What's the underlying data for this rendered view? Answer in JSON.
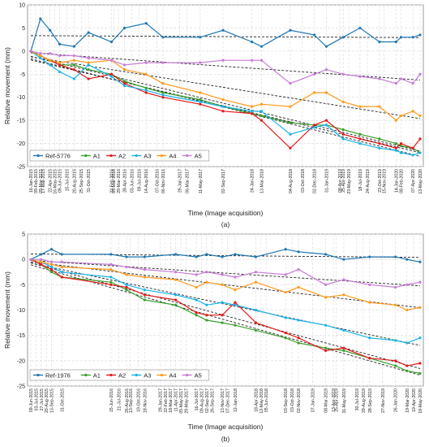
{
  "chart_data": [
    {
      "type": "line",
      "caption": "(a)",
      "xlabel": "Time (Image acquisition)",
      "ylabel": "Relative movement (mm)",
      "ylim": [
        -25,
        10
      ],
      "yticks": [
        10,
        5,
        0,
        -5,
        -10,
        -15,
        -20,
        -25
      ],
      "grid": true,
      "legend_position": "bottom-left",
      "x_tick_labels": [
        "16-Jan-2015",
        "09-Feb-2015",
        "05-Mar-2015",
        "17-Mar-2015",
        "22-Apr-2015",
        "16-May-2015",
        "09-Jun-2015",
        "15-Jul-2015",
        "20-Aug-2015",
        "25-Sep-2015",
        "31-Oct-2015",
        "23-Feb-2016",
        "05-Mar-2016",
        "29-Mar-2016",
        "28-Apr-2016",
        "03-Jun-2016",
        "09-Jul-2016",
        "14-Aug-2016",
        "07-Oct-2016",
        "06-Nov-2016",
        "29-Jan-2017",
        "06-Mar-2017",
        "11-May-2017",
        "02-Sep-2017",
        "24-Jan-2018",
        "13-Mar-2018",
        "04-Aug-2018",
        "03-Oct-2018",
        "02-Dec-2018",
        "31-Jan-2019",
        "08-Apr-2019",
        "25-Apr-2019",
        "23-May-2019",
        "18-Jul-2019",
        "24-Aug-2019",
        "23-Oct-2019",
        "15-Nov-2019",
        "14-Jan-2020",
        "08-Feb-2020",
        "07-Apr-2020",
        "13-May-2020"
      ],
      "x": [
        "16-Jan-2015",
        "05-Mar-2015",
        "22-Apr-2015",
        "09-Jun-2015",
        "20-Aug-2015",
        "31-Oct-2015",
        "23-Feb-2016",
        "28-Apr-2016",
        "14-Aug-2016",
        "06-Nov-2016",
        "11-May-2017",
        "02-Sep-2017",
        "24-Jan-2018",
        "13-Mar-2018",
        "04-Aug-2018",
        "02-Dec-2018",
        "31-Jan-2019",
        "25-Apr-2019",
        "18-Jul-2019",
        "23-Oct-2019",
        "14-Jan-2020",
        "08-Feb-2020",
        "07-Apr-2020",
        "13-May-2020"
      ],
      "series": [
        {
          "name": "Ref-5776",
          "color": "#1f77b4",
          "values": [
            0,
            7,
            4.5,
            1.5,
            1,
            4,
            2,
            5,
            6,
            3,
            3,
            4.5,
            2,
            1,
            4.5,
            3.5,
            1,
            3,
            5,
            2,
            2,
            3,
            3,
            3.5
          ]
        },
        {
          "name": "A1",
          "color": "#3aa02d",
          "values": [
            0,
            -1,
            -2,
            -3,
            -3,
            -4,
            -5,
            -6.5,
            -8,
            -9,
            -10.5,
            -12,
            -13.5,
            -14,
            -15.5,
            -16,
            -16,
            -17,
            -18,
            -19,
            -20,
            -20.5,
            -21,
            -22
          ]
        },
        {
          "name": "A2",
          "color": "#e41a1c",
          "values": [
            0,
            -1,
            -2,
            -3,
            -4,
            -6,
            -5,
            -7,
            -9,
            -10,
            -11.5,
            -13,
            -13.5,
            -15,
            -21,
            -16,
            -15,
            -18,
            -19,
            -20,
            -21,
            -20,
            -21,
            -19
          ]
        },
        {
          "name": "A3",
          "color": "#17b4e8",
          "values": [
            0,
            -1.5,
            -3,
            -4.5,
            -6,
            -3,
            -5.5,
            -7.5,
            -8.5,
            -9.5,
            -11,
            -12,
            -13,
            -13,
            -18,
            -16.5,
            -16,
            -19,
            -20,
            -21,
            -21.5,
            -22,
            -22.5,
            -22
          ]
        },
        {
          "name": "A4",
          "color": "#ff9a1a",
          "values": [
            0,
            -1,
            -2,
            -2.5,
            -2,
            -2.5,
            -2,
            -4,
            -5,
            -7,
            -9,
            -10.5,
            -12,
            -11.5,
            -12,
            -9,
            -9,
            -11,
            -12,
            -12,
            -15,
            -14,
            -13,
            -14
          ]
        },
        {
          "name": "A5",
          "color": "#c77cd6",
          "values": [
            0,
            -0.5,
            -0.5,
            -1,
            -1,
            -1.5,
            -2,
            -3,
            -2.5,
            -2.5,
            -2.5,
            -2,
            -2,
            -2,
            -7,
            -5,
            -4,
            -5,
            -5.5,
            -6,
            -7,
            -6,
            -7,
            -5
          ]
        }
      ]
    },
    {
      "type": "line",
      "caption": "(b)",
      "xlabel": "Time (Image acquisition)",
      "ylabel": "Relative movement (mm)",
      "ylim": [
        -25,
        5
      ],
      "yticks": [
        5,
        0,
        -5,
        -10,
        -15,
        -20,
        -25
      ],
      "grid": true,
      "legend_position": "bottom-left",
      "x_tick_labels": [
        "09-Jun-2015",
        "03-Jul-2015",
        "27-Jul-2015",
        "20-Aug-2015",
        "13-Sep-2015",
        "31-Oct-2015",
        "15-Jun-2016",
        "21-Jul-2016",
        "26-Aug-2016",
        "13-Sep-2016",
        "19-Oct-2016",
        "18-Nov-2016",
        "29-Jan-2017",
        "22-Feb-2017",
        "18-Mar-2017",
        "11-Apr-2017",
        "05-May-2017",
        "29-May-2017",
        "16-Jul-2017",
        "09-Aug-2017",
        "02-Sep-2017",
        "26-Sep-2017",
        "13-Nov-2017",
        "07-Dec-2017",
        "12-Jan-2018",
        "18-Apr-2018",
        "12-May-2018",
        "05-Jun-2018",
        "03-Sep-2018",
        "03-Oct-2018",
        "02-Nov-2018",
        "07-Jan-2019",
        "08-Mar-2019",
        "13-Apr-2019",
        "25-Apr-2019",
        "31-May-2019",
        "30-Jul-2019",
        "29-Aug-2019",
        "28-Sep-2019",
        "27-Nov-2019",
        "26-Jan-2020",
        "19-Mar-2020",
        "19-Apr-2020",
        "19-May-2020"
      ],
      "x": [
        "09-Jun-2015",
        "27-Jul-2015",
        "13-Sep-2015",
        "31-Oct-2015",
        "15-Jun-2016",
        "26-Aug-2016",
        "18-Nov-2016",
        "11-Apr-2017",
        "16-Jul-2017",
        "02-Sep-2017",
        "13-Nov-2017",
        "12-Jan-2018",
        "18-Apr-2018",
        "03-Sep-2018",
        "02-Nov-2018",
        "08-Mar-2019",
        "31-May-2019",
        "28-Sep-2019",
        "26-Jan-2020",
        "19-Mar-2020",
        "19-May-2020"
      ],
      "series": [
        {
          "name": "Ref-1976",
          "color": "#1f77b4",
          "values": [
            0,
            1,
            2,
            1,
            1,
            0.5,
            0.5,
            1,
            0.5,
            1,
            0.5,
            1,
            0.5,
            2,
            1.5,
            1,
            0,
            0.5,
            0.5,
            0,
            -0.5
          ]
        },
        {
          "name": "A1",
          "color": "#3aa02d",
          "values": [
            0,
            -1,
            -2.5,
            -3.5,
            -4.5,
            -6,
            -8,
            -9,
            -11,
            -12,
            -12.5,
            -13,
            -14,
            -15.5,
            -16.5,
            -17.5,
            -18,
            -19.5,
            -21,
            -22,
            -22.5
          ]
        },
        {
          "name": "A2",
          "color": "#e41a1c",
          "values": [
            0,
            -1,
            -2,
            -3.5,
            -5,
            -5.5,
            -7,
            -8,
            -10.5,
            -11,
            -11,
            -8.5,
            -12.5,
            -14.5,
            -15.5,
            -18,
            -17.5,
            -19.5,
            -20,
            -21,
            -20.5
          ]
        },
        {
          "name": "A3",
          "color": "#17b4e8",
          "values": [
            0,
            -0.5,
            -1.5,
            -2.5,
            -3.5,
            -5,
            -6,
            -7,
            -8,
            -9,
            -8.5,
            -9,
            -10,
            -11.5,
            -12,
            -13,
            -14,
            -15.5,
            -16,
            -16.5,
            -15.5
          ]
        },
        {
          "name": "A4",
          "color": "#ff9a1a",
          "values": [
            0,
            -0.5,
            -1,
            -1.5,
            -2,
            -3,
            -3.5,
            -4,
            -5.5,
            -4.5,
            -5,
            -6,
            -4.5,
            -6.5,
            -5.5,
            -7.5,
            -7,
            -8.5,
            -9,
            -10,
            -9.5
          ]
        },
        {
          "name": "A5",
          "color": "#c77cd6",
          "values": [
            0,
            0,
            -0.5,
            -0.5,
            -1,
            -1.5,
            -2,
            -2.5,
            -3,
            -2.5,
            -3,
            -3.5,
            -2.5,
            -3,
            -2,
            -5,
            -4,
            -5,
            -5.5,
            -5,
            -4.5
          ]
        }
      ]
    }
  ]
}
